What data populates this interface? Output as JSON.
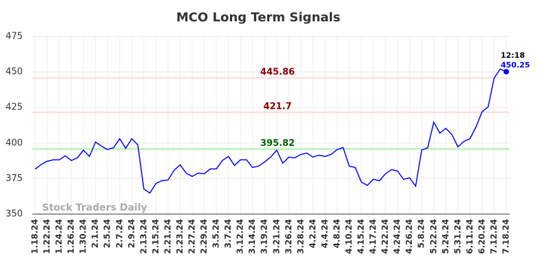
{
  "chart_data": {
    "type": "line",
    "title": "MCO Long Term Signals",
    "categories": [
      "1.18.24",
      null,
      "1.22.24",
      null,
      "1.24.24",
      null,
      "1.26.24",
      null,
      "1.30.24",
      null,
      "2.1.24",
      null,
      "2.5.24",
      null,
      "2.7.24",
      null,
      "2.9.24",
      null,
      "2.13.24",
      null,
      "2.15.24",
      null,
      "2.21.24",
      null,
      "2.23.24",
      null,
      "2.27.24",
      null,
      "2.29.24",
      null,
      "3.5.24",
      null,
      "3.7.24",
      null,
      "3.12.24",
      null,
      "3.14.24",
      null,
      "3.19.24",
      null,
      "3.21.24",
      null,
      "3.26.24",
      null,
      "3.28.24",
      null,
      "4.2.24",
      null,
      "4.4.24",
      null,
      "4.8.24",
      null,
      "4.10.24",
      null,
      "4.15.24",
      null,
      "4.17.24",
      null,
      "4.22.24",
      null,
      "4.24.24",
      null,
      "4.26.24",
      null,
      "5.8.24",
      null,
      "5.22.24",
      null,
      "5.24.24",
      null,
      "5.31.24",
      null,
      "6.11.24",
      null,
      "6.20.24",
      null,
      "7.12.24",
      null,
      "7.18.24"
    ],
    "values": [
      381.6,
      384.9,
      387.2,
      388.2,
      388.2,
      391,
      387.7,
      389.6,
      395,
      390.6,
      400.7,
      397.8,
      395.4,
      396.8,
      403.1,
      396.3,
      403.1,
      398.7,
      367.7,
      364.8,
      371.6,
      373.5,
      374,
      380.8,
      384.7,
      378.9,
      376.5,
      378.9,
      378.4,
      381.8,
      381.8,
      387.7,
      390.6,
      384.3,
      388.2,
      388.2,
      382.8,
      383.8,
      386.7,
      390.1,
      395,
      385.8,
      390.1,
      389.6,
      392,
      393,
      390.1,
      391.5,
      390.6,
      392,
      395.4,
      396.8,
      383.8,
      382.8,
      372.6,
      370.2,
      374.5,
      373.5,
      378.4,
      381.3,
      380.3,
      374.5,
      375.5,
      369.7,
      395,
      396.8,
      414.7,
      407,
      410.4,
      406,
      397.3,
      401.2,
      403.1,
      411.4,
      422,
      425.4,
      445.8,
      452.1,
      450.25
    ],
    "color": "#0000ff",
    "ylim": [
      350,
      475
    ],
    "yticks": [
      350,
      375,
      400,
      425,
      450,
      475
    ],
    "grid": true,
    "signals": [
      {
        "value": 445.86,
        "color": "#ffcccc",
        "label_color": "#8b0000"
      },
      {
        "value": 421.7,
        "color": "#ffcccc",
        "label_color": "#8b0000"
      },
      {
        "value": 395.82,
        "color": "#90ee90",
        "label_color": "#006400"
      }
    ],
    "last_time": "12:18",
    "watermark": "Stock Traders Daily"
  }
}
